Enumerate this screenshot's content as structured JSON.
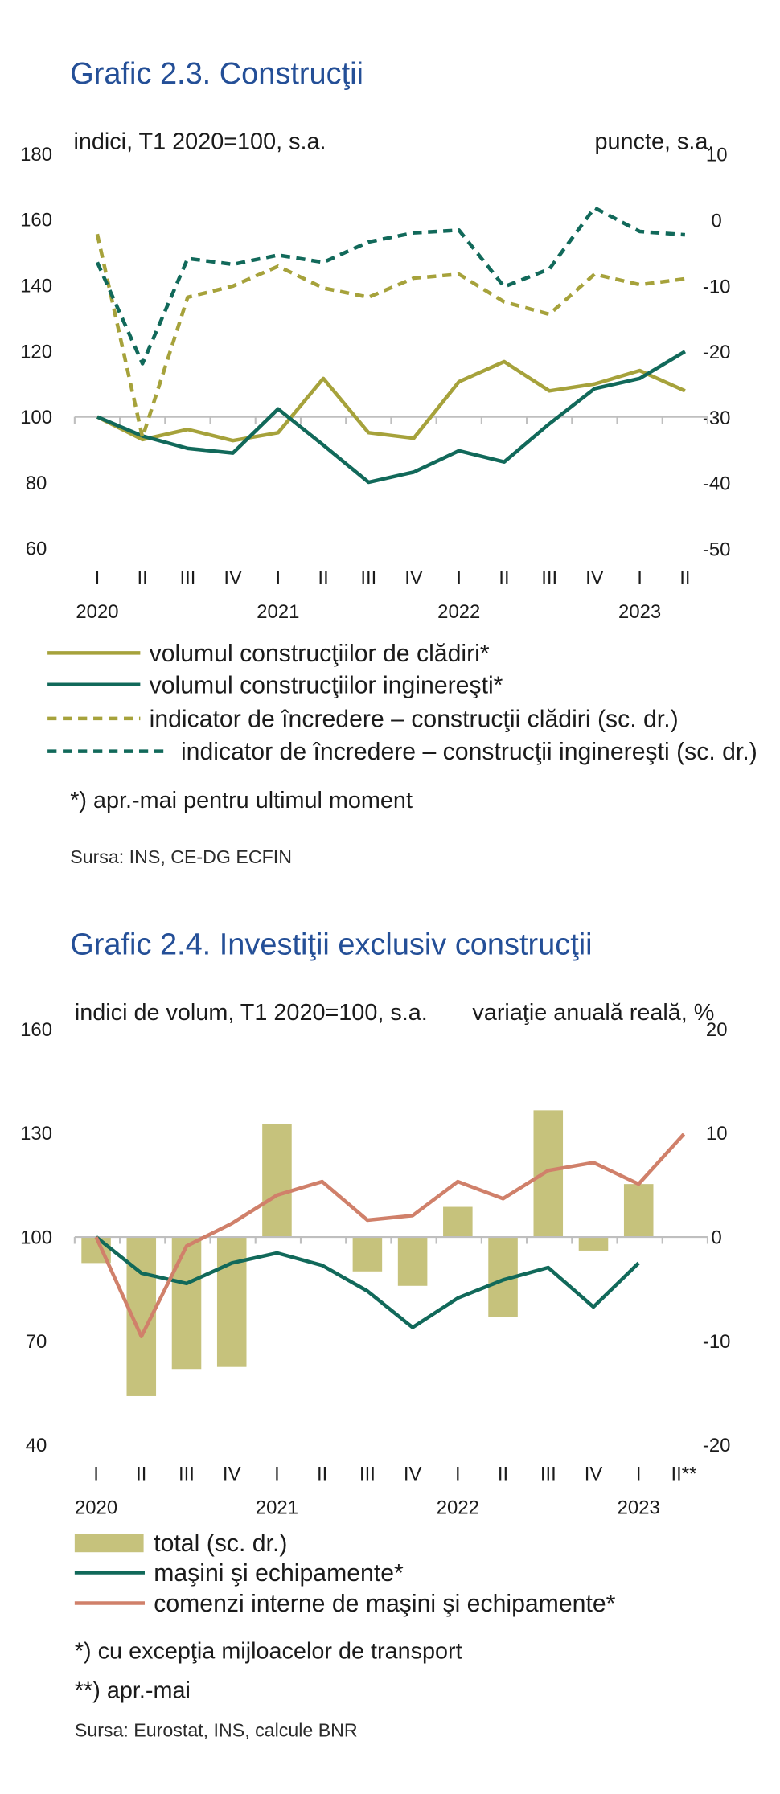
{
  "chart_data": [
    {
      "type": "line",
      "title": "Grafic 2.3. Construcţii",
      "left_axis_label": "indici, T1 2020=100, s.a.",
      "right_axis_label": "puncte, s.a.",
      "left_ylim": [
        60,
        180
      ],
      "left_ticks": [
        180,
        160,
        140,
        120,
        100,
        80,
        60
      ],
      "right_ylim": [
        -50,
        10
      ],
      "right_ticks": [
        10,
        0,
        -10,
        -20,
        -30,
        -40,
        -50
      ],
      "category_axis_crosses_left_at": 100,
      "categories": [
        "I",
        "II",
        "III",
        "IV",
        "I",
        "II",
        "III",
        "IV",
        "I",
        "II",
        "III",
        "IV",
        "I",
        "II"
      ],
      "years": [
        {
          "label": "2020",
          "category_index": 0
        },
        {
          "label": "2021",
          "category_index": 4
        },
        {
          "label": "2022",
          "category_index": 8
        },
        {
          "label": "2023",
          "category_index": 12
        }
      ],
      "grid": false,
      "legend_position": "bottom",
      "series": [
        {
          "name": "volumul construcţiilor de clădiri*",
          "type": "line",
          "axis": "left",
          "style": "solid",
          "color": "#a6a23b",
          "values": [
            100,
            93.1,
            96.2,
            92.8,
            95.2,
            111.7,
            95.2,
            93.5,
            110.7,
            116.8,
            107.9,
            110.0,
            114.1,
            107.9
          ]
        },
        {
          "name": "volumul construcţiilor inginereşti*",
          "type": "line",
          "axis": "left",
          "style": "solid",
          "color": "#11695a",
          "values": [
            100,
            94.2,
            90.4,
            89.0,
            102.4,
            91.4,
            80.1,
            83.2,
            89.7,
            86.3,
            97.9,
            108.6,
            111.7,
            119.9
          ]
        },
        {
          "name": "indicator de încredere – construcţii clădiri (sc. dr.)",
          "type": "line",
          "axis": "right",
          "style": "dashed",
          "color": "#a6a23b",
          "values": [
            -2.1,
            -33.0,
            -11.7,
            -10.0,
            -7.0,
            -10.3,
            -11.7,
            -8.8,
            -8.2,
            -12.4,
            -14.3,
            -8.2,
            -9.8,
            -8.9
          ]
        },
        {
          "name": "indicator de încredere – construcţii inginereşti (sc. dr.)",
          "type": "line",
          "axis": "right",
          "style": "dashed",
          "color": "#11695a",
          "values": [
            -6.4,
            -21.8,
            -5.8,
            -6.7,
            -5.3,
            -6.4,
            -3.3,
            -1.9,
            -1.5,
            -10.1,
            -7.4,
            1.9,
            -1.7,
            -2.2
          ]
        }
      ],
      "notes": [
        "*) apr.-mai pentru ultimul moment"
      ],
      "source": "Sursa: INS, CE-DG ECFIN"
    },
    {
      "type": "bar",
      "title": "Grafic 2.4. Investiţii exclusiv construcţii",
      "left_axis_label": "indici de volum, T1 2020=100, s.a.",
      "right_axis_label": "variaţie anuală reală, %",
      "left_ylim": [
        40,
        160
      ],
      "left_ticks": [
        160,
        130,
        100,
        70,
        40
      ],
      "right_ylim": [
        -20,
        20
      ],
      "right_ticks": [
        20,
        10,
        0,
        -10,
        -20
      ],
      "category_axis_crosses_left_at": 100,
      "categories": [
        "I",
        "II",
        "III",
        "IV",
        "I",
        "II",
        "III",
        "IV",
        "I",
        "II",
        "III",
        "IV",
        "I",
        "II**"
      ],
      "years": [
        {
          "label": "2020",
          "category_index": 0
        },
        {
          "label": "2021",
          "category_index": 4
        },
        {
          "label": "2022",
          "category_index": 8
        },
        {
          "label": "2023",
          "category_index": 12
        }
      ],
      "grid": false,
      "legend_position": "bottom",
      "series": [
        {
          "name": "total (sc. dr.)",
          "type": "bar",
          "axis": "right",
          "style": "solid",
          "color": "#c6c27c",
          "values": [
            -2.5,
            -15.3,
            -12.7,
            -12.5,
            10.9,
            0,
            -3.3,
            -4.7,
            2.9,
            -7.7,
            12.2,
            -1.3,
            5.1,
            null
          ]
        },
        {
          "name": "maşini şi echipamente*",
          "type": "line",
          "axis": "left",
          "style": "solid",
          "color": "#11695a",
          "values": [
            100,
            89.6,
            86.6,
            92.5,
            95.4,
            91.8,
            84.4,
            73.9,
            82.4,
            87.6,
            91.2,
            79.8,
            92.5,
            null
          ]
        },
        {
          "name": "comenzi interne de maşini şi echipamente*",
          "type": "line",
          "axis": "left",
          "style": "solid",
          "color": "#d0806a",
          "values": [
            100,
            71.3,
            97.4,
            103.9,
            112.1,
            116.0,
            104.9,
            106.2,
            116.0,
            111.1,
            119.2,
            121.5,
            115.3,
            129.7
          ]
        }
      ],
      "notes": [
        "*) cu excepţia mijloacelor de transport",
        "**) apr.-mai"
      ],
      "source": "Sursa: Eurostat, INS, calcule BNR"
    }
  ],
  "colors": {
    "title": "#244f97",
    "axis": "#bfbfbf",
    "text": "#1b1b1b"
  }
}
